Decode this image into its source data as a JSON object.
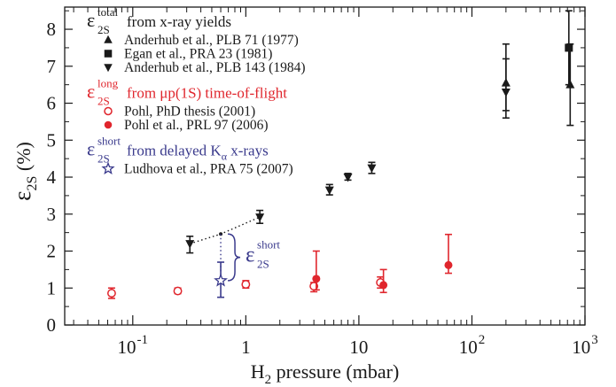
{
  "chart_data": {
    "type": "scatter",
    "x_scale": "log",
    "xlim": [
      0.025,
      1000
    ],
    "ylim": [
      0,
      8.6
    ],
    "y_ticks": [
      0,
      1,
      2,
      3,
      4,
      5,
      6,
      7,
      8
    ],
    "x_major_ticks": [
      {
        "value": 0.1,
        "base": "10",
        "exp": "-1"
      },
      {
        "value": 1,
        "base": "1",
        "exp": ""
      },
      {
        "value": 10,
        "base": "10",
        "exp": ""
      },
      {
        "value": 100,
        "base": "10",
        "exp": "2"
      },
      {
        "value": 1000,
        "base": "10",
        "exp": "3"
      }
    ],
    "ylabel": {
      "sym": "ε",
      "sub": "2S",
      "unit": "(%)"
    },
    "xlabel": {
      "pre": "H",
      "sub": "2",
      "post": " pressure (mbar)"
    },
    "legend": {
      "groups": [
        {
          "color": "#1a1a1a",
          "sym": "ε",
          "sup": "total",
          "sub": "2S",
          "text": "from x-ray yields",
          "entries": [
            {
              "marker": "triangle-up",
              "label": "Anderhub et al., PLB 71 (1977)"
            },
            {
              "marker": "square",
              "label": "Egan et al., PRA 23 (1981)"
            },
            {
              "marker": "triangle-down",
              "label": "Anderhub et al., PLB 143 (1984)"
            }
          ]
        },
        {
          "color": "#e0262d",
          "sym": "ε",
          "sup": "long",
          "sub": "2S",
          "text": "from μp(1S) time-of-flight",
          "entries": [
            {
              "marker": "circle-open",
              "label": "Pohl, PhD thesis (2001)"
            },
            {
              "marker": "circle-filled",
              "label": "Pohl et al., PRL 97 (2006)"
            }
          ]
        },
        {
          "color": "#3a3a8c",
          "sym": "ε",
          "sup": "short",
          "sub": "2S",
          "text": "from delayed K",
          "text_sub": "α",
          "text_tail": " x-rays",
          "entries": [
            {
              "marker": "star-open",
              "label": "Ludhova et al., PRA 75 (2007)"
            }
          ]
        }
      ]
    },
    "series": [
      {
        "name": "Anderhub et al., PLB 71 (1977)",
        "marker": "triangle-up",
        "color": "#1a1a1a",
        "points": [
          {
            "x": 200,
            "y": 6.55,
            "lo": 5.8,
            "hi": 7.2
          },
          {
            "x": 740,
            "y": 6.5,
            "lo": 5.4,
            "hi": 7.6
          }
        ]
      },
      {
        "name": "Egan et al., PRA 23 (1981)",
        "marker": "square",
        "color": "#1a1a1a",
        "points": [
          {
            "x": 720,
            "y": 7.5,
            "lo": 6.5,
            "hi": 8.5
          }
        ]
      },
      {
        "name": "Anderhub et al., PLB 143 (1984)",
        "marker": "triangle-down",
        "color": "#1a1a1a",
        "points": [
          {
            "x": 0.32,
            "y": 2.2,
            "lo": 1.95,
            "hi": 2.4
          },
          {
            "x": 1.33,
            "y": 2.92,
            "lo": 2.75,
            "hi": 3.1
          },
          {
            "x": 5.5,
            "y": 3.65,
            "lo": 3.52,
            "hi": 3.8
          },
          {
            "x": 8,
            "y": 4.0,
            "lo": 3.92,
            "hi": 4.1
          },
          {
            "x": 13,
            "y": 4.25,
            "lo": 4.1,
            "hi": 4.4
          },
          {
            "x": 200,
            "y": 6.3,
            "lo": 5.6,
            "hi": 7.6
          }
        ]
      },
      {
        "name": "Pohl, PhD thesis (2001)",
        "marker": "circle-open",
        "color": "#e0262d",
        "points": [
          {
            "x": 0.065,
            "y": 0.86,
            "lo": 0.72,
            "hi": 1.0
          },
          {
            "x": 0.25,
            "y": 0.92,
            "lo": 0.85,
            "hi": 1.0
          },
          {
            "x": 1.0,
            "y": 1.1,
            "lo": 1.0,
            "hi": 1.2
          },
          {
            "x": 4.0,
            "y": 1.05,
            "lo": 0.9,
            "hi": 1.15
          },
          {
            "x": 15.5,
            "y": 1.15,
            "lo": 1.0,
            "hi": 1.3
          }
        ]
      },
      {
        "name": "Pohl et al., PRL 97 (2006)",
        "marker": "circle-filled",
        "color": "#e0262d",
        "points": [
          {
            "x": 4.2,
            "y": 1.25,
            "lo": 0.95,
            "hi": 2.0
          },
          {
            "x": 16.5,
            "y": 1.08,
            "lo": 0.88,
            "hi": 1.5
          },
          {
            "x": 62,
            "y": 1.62,
            "lo": 1.4,
            "hi": 2.45
          }
        ]
      },
      {
        "name": "Ludhova et al., PRA 75 (2007)",
        "marker": "star-open",
        "color": "#3a3a8c",
        "points": [
          {
            "x": 0.6,
            "y": 1.2,
            "lo": 0.75,
            "hi": 1.7
          }
        ]
      }
    ],
    "annotation": {
      "dotted_line_x": [
        0.32,
        0.6,
        1.33
      ],
      "dotted_line_y": [
        2.2,
        2.46,
        2.92
      ],
      "vertical_dotted_x": 0.6,
      "vertical_dotted_y": [
        1.2,
        2.46
      ],
      "brace_y": [
        1.2,
        2.46
      ],
      "label": {
        "sym": "ε",
        "sup": "short",
        "sub": "2S"
      },
      "color": "#3a3a8c"
    }
  }
}
